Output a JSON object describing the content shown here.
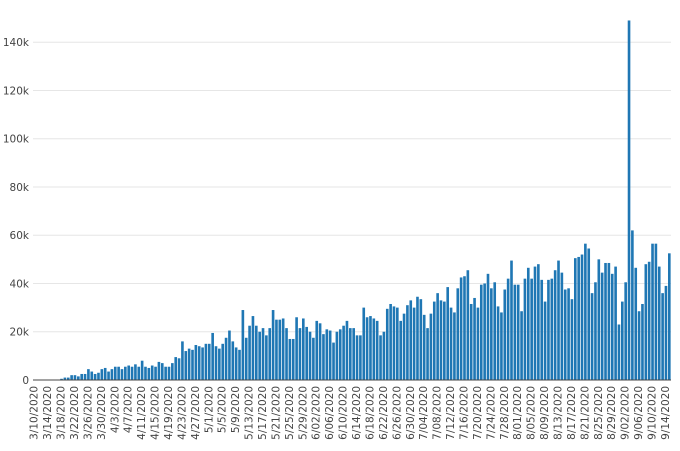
{
  "chart_data": {
    "type": "bar",
    "title": "",
    "xlabel": "",
    "ylabel": "",
    "ylim": [
      0,
      155000
    ],
    "grid": true,
    "bar_color": "#1f77b4",
    "y_ticks": [
      {
        "value": 0,
        "label": "0"
      },
      {
        "value": 20000,
        "label": "20k"
      },
      {
        "value": 40000,
        "label": "40k"
      },
      {
        "value": 60000,
        "label": "60k"
      },
      {
        "value": 80000,
        "label": "80k"
      },
      {
        "value": 100000,
        "label": "100k"
      },
      {
        "value": 120000,
        "label": "120k"
      },
      {
        "value": 140000,
        "label": "140k"
      }
    ],
    "x_tick_labels": [
      "3/10/2020",
      "3/14/2020",
      "3/18/2020",
      "3/22/2020",
      "3/26/2020",
      "3/30/2020",
      "4/3/2020",
      "4/7/2020",
      "4/11/2020",
      "4/15/2020",
      "4/19/2020",
      "4/23/2020",
      "4/27/2020",
      "5/1/2020",
      "5/5/2020",
      "5/9/2020",
      "5/13/2020",
      "5/17/2020",
      "5/21/2020",
      "5/25/2020",
      "5/29/2020",
      "6/02/2020",
      "6/06/2020",
      "6/10/2020",
      "6/14/2020",
      "6/18/2020",
      "6/22/2020",
      "6/26/2020",
      "6/30/2020",
      "7/04/2020",
      "7/08/2020",
      "7/12/2020",
      "7/16/2020",
      "7/20/2020",
      "7/24/2020",
      "7/28/2020",
      "8/01/2020",
      "8/05/2020",
      "8/09/2020",
      "8/13/2020",
      "8/17/2020",
      "8/21/2020",
      "8/25/2020",
      "8/29/2020",
      "9/02/2020",
      "9/06/2020",
      "9/10/2020",
      "9/14/2020"
    ],
    "values": [
      0,
      0,
      0,
      0,
      0,
      0,
      0,
      0,
      500,
      1000,
      1000,
      2000,
      2000,
      1500,
      2500,
      2500,
      4500,
      3500,
      2500,
      3000,
      4500,
      5000,
      3500,
      4500,
      5500,
      5500,
      4500,
      5500,
      6000,
      5500,
      6500,
      5500,
      8000,
      5500,
      5000,
      6000,
      5500,
      7500,
      7000,
      5500,
      5500,
      7000,
      9500,
      9000,
      16000,
      12000,
      13000,
      12500,
      14500,
      14000,
      13500,
      15000,
      15000,
      19500,
      14000,
      13000,
      15000,
      17500,
      20500,
      16000,
      13500,
      12500,
      29000,
      17500,
      22500,
      26500,
      22500,
      20000,
      21500,
      18500,
      21500,
      29000,
      25000,
      25000,
      25500,
      21500,
      17000,
      17000,
      26000,
      21500,
      25500,
      22000,
      20000,
      17500,
      24500,
      23500,
      19000,
      21000,
      20500,
      15500,
      20000,
      21000,
      22500,
      24500,
      21500,
      21500,
      18500,
      18500,
      30000,
      26000,
      26500,
      25500,
      24500,
      18500,
      20000,
      29500,
      31500,
      30500,
      30000,
      24500,
      27500,
      31000,
      33000,
      30000,
      34500,
      33500,
      27000,
      21500,
      27500,
      32500,
      36000,
      33000,
      32500,
      38500,
      30000,
      28000,
      38000,
      42500,
      43000,
      45500,
      31500,
      34000,
      30000,
      39500,
      40000,
      44000,
      38000,
      40500,
      30500,
      28000,
      37500,
      42000,
      49500,
      39500,
      39500,
      28500,
      42000,
      46500,
      42000,
      47000,
      48000,
      41500,
      32500,
      41500,
      42000,
      45500,
      49500,
      44500,
      37500,
      38000,
      33500,
      50500,
      51000,
      52000,
      56500,
      54500,
      36000,
      40500,
      50000,
      44500,
      48500,
      48500,
      44000,
      47000,
      23000,
      32500,
      40500,
      149000,
      62000,
      46500,
      28500,
      31500,
      48000,
      49000,
      56500,
      56500,
      47000,
      36000,
      39000,
      52500
    ]
  }
}
